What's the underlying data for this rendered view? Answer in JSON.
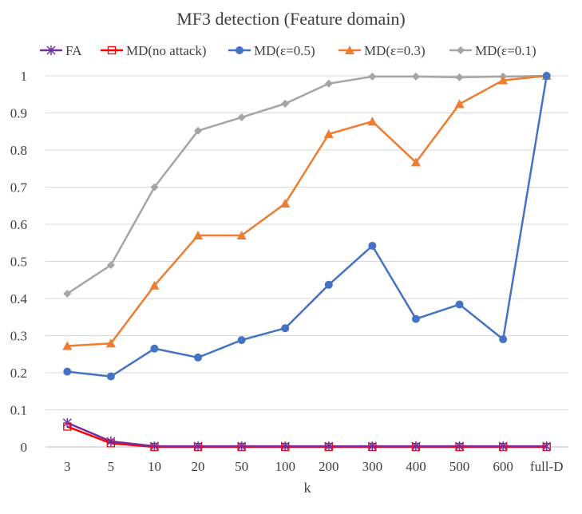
{
  "chart_data": {
    "type": "line",
    "title": "MF3 detection (Feature domain)",
    "xlabel": "k",
    "ylabel": "",
    "categories": [
      "3",
      "5",
      "10",
      "20",
      "50",
      "100",
      "200",
      "300",
      "400",
      "500",
      "600",
      "full-D"
    ],
    "ylim": [
      0,
      1
    ],
    "yticks": [
      0,
      0.1,
      0.2,
      0.3,
      0.4,
      0.5,
      0.6,
      0.7,
      0.8,
      0.9,
      1
    ],
    "grid": true,
    "legend_position": "top",
    "series": [
      {
        "name": "FA",
        "color": "#7030A0",
        "marker": "star",
        "values": [
          0.065,
          0.015,
          0.002,
          0.002,
          0.002,
          0.002,
          0.002,
          0.002,
          0.002,
          0.002,
          0.002,
          0.002
        ]
      },
      {
        "name": "MD(no attack)",
        "color": "#FF0000",
        "marker": "square-open",
        "values": [
          0.055,
          0.01,
          0.0,
          0.0,
          0.0,
          0.0,
          0.0,
          0.0,
          0.0,
          0.0,
          0.0,
          0.0
        ]
      },
      {
        "name": "MD(ε=0.5)",
        "color": "#4472C4",
        "marker": "circle",
        "values": [
          0.203,
          0.19,
          0.265,
          0.241,
          0.288,
          0.32,
          0.437,
          0.542,
          0.345,
          0.384,
          0.29,
          1.0
        ]
      },
      {
        "name": "MD(ε=0.3)",
        "color": "#ED7D31",
        "marker": "triangle",
        "values": [
          0.272,
          0.279,
          0.435,
          0.57,
          0.57,
          0.656,
          0.843,
          0.877,
          0.767,
          0.924,
          0.988,
          1.0
        ]
      },
      {
        "name": "MD(ε=0.1)",
        "color": "#A5A5A5",
        "marker": "diamond",
        "values": [
          0.413,
          0.49,
          0.7,
          0.852,
          0.888,
          0.925,
          0.979,
          0.998,
          0.998,
          0.996,
          0.998,
          1.0
        ]
      }
    ]
  }
}
